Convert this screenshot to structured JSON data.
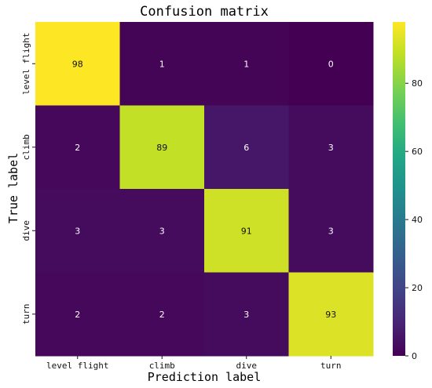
{
  "chart_data": {
    "type": "heatmap",
    "title": "Confusion matrix",
    "xlabel": "Prediction label",
    "ylabel": "True label",
    "x_categories": [
      "level flight",
      "climb",
      "dive",
      "turn"
    ],
    "y_categories": [
      "level flight",
      "climb",
      "dive",
      "turn"
    ],
    "values": [
      [
        98,
        1,
        1,
        0
      ],
      [
        2,
        89,
        6,
        3
      ],
      [
        3,
        3,
        91,
        3
      ],
      [
        2,
        2,
        3,
        93
      ]
    ],
    "colorbar": {
      "range": [
        0,
        98
      ],
      "ticks": [
        0,
        20,
        40,
        60,
        80
      ],
      "colormap": "viridis"
    }
  }
}
